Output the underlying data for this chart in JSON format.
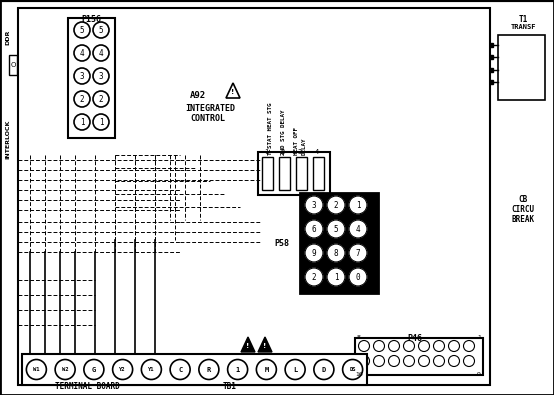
{
  "bg_color": "#ffffff",
  "line_color": "#000000",
  "p156_label": "P156",
  "p156_pins": [
    "5",
    "4",
    "3",
    "2",
    "1"
  ],
  "a92_label_1": "A92",
  "a92_label_2": "INTEGRATED",
  "a92_label_3": "CONTROL",
  "p58_label": "P58",
  "p58_pins": [
    [
      "3",
      "2",
      "1"
    ],
    [
      "6",
      "5",
      "4"
    ],
    [
      "9",
      "8",
      "7"
    ],
    [
      "2",
      "1",
      "0"
    ]
  ],
  "p46_label": "P46",
  "terminal_labels": [
    "W1",
    "W2",
    "G",
    "Y2",
    "Y1",
    "C",
    "R",
    "1",
    "M",
    "L",
    "D",
    "DS"
  ],
  "terminal_board_label": "TERMINAL BOARD",
  "tb1_label": "TB1",
  "t1_label_1": "T1",
  "t1_label_2": "TRANSF",
  "cb_label_1": "CB",
  "cb_label_2": "CIRCU",
  "cb_label_3": "BREAK",
  "interlock_label": "INTERLOCK",
  "ddr_label": "DDR",
  "conn_nums": [
    "1",
    "2",
    "3",
    "4"
  ],
  "conn_label_1": "T-STAT HEAT STG",
  "conn_label_2": "2ND STG DELAY",
  "conn_label_3": "HEAT OFF",
  "conn_label_4": "DELAY"
}
